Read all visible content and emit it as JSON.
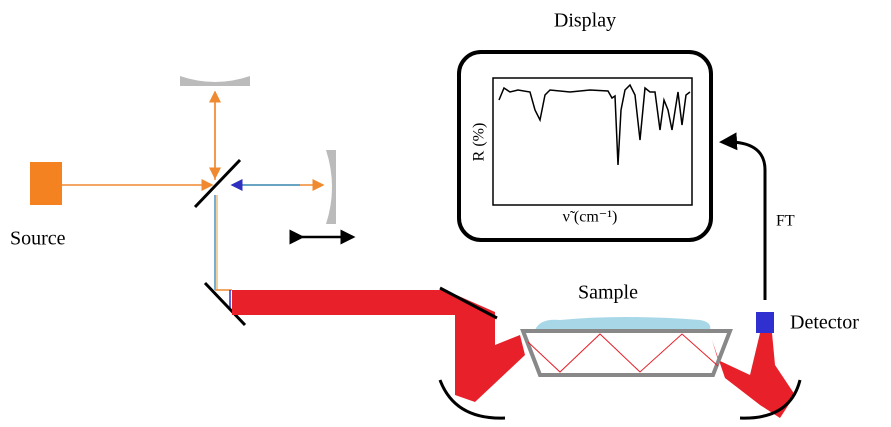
{
  "labels": {
    "display": "Display",
    "source": "Source",
    "sample": "Sample",
    "detector": "Detector",
    "ft": "FT"
  },
  "plot": {
    "y_label": "R (%)",
    "x_label": "ν̃ (cm⁻¹)"
  }
}
